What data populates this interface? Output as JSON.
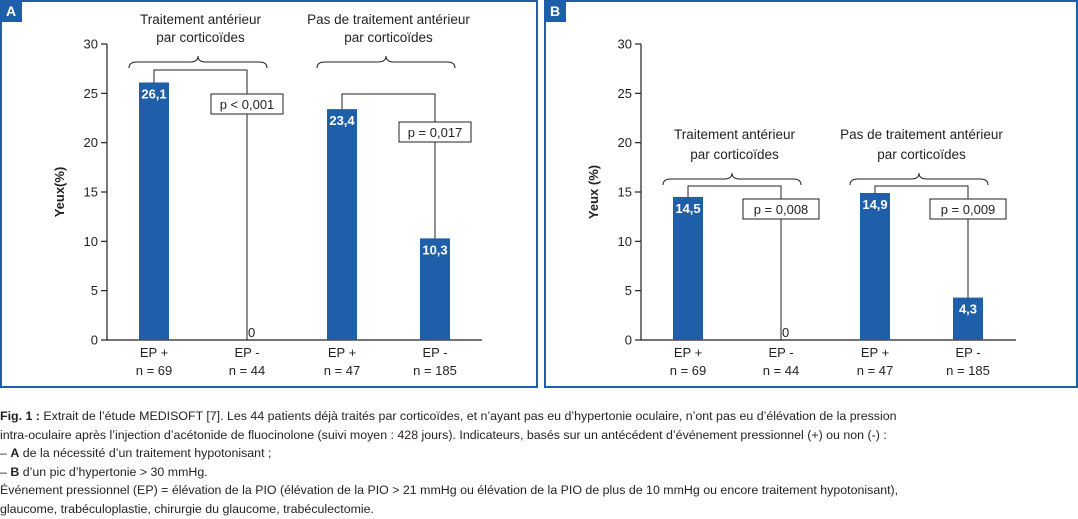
{
  "colors": {
    "bar": "#1f5ea8",
    "frame": "#1f5ea8",
    "text": "#231f20"
  },
  "chart_data": [
    {
      "type": "bar",
      "panel": "A",
      "ylabel": "Yeux(%)",
      "ylim": [
        0,
        30
      ],
      "yticks": [
        0,
        5,
        10,
        15,
        20,
        25,
        30
      ],
      "categories": [
        "EP +",
        "EP -",
        "EP +",
        "EP -"
      ],
      "n_labels": [
        "n = 69",
        "n = 44",
        "n = 47",
        "n = 185"
      ],
      "values": [
        26.1,
        0,
        23.4,
        10.3
      ],
      "value_labels": [
        "26,1",
        "0",
        "23,4",
        "10,3"
      ],
      "groups": [
        {
          "label_line1": "Traitement antérieur",
          "label_line2": "par corticoïdes",
          "p_label": "p < 0,001"
        },
        {
          "label_line1": "Pas de traitement antérieur",
          "label_line2": "par corticoïdes",
          "p_label": "p = 0,017"
        }
      ]
    },
    {
      "type": "bar",
      "panel": "B",
      "ylabel": "Yeux (%)",
      "ylim": [
        0,
        30
      ],
      "yticks": [
        0,
        5,
        10,
        15,
        20,
        25,
        30
      ],
      "categories": [
        "EP +",
        "EP -",
        "EP +",
        "EP -"
      ],
      "n_labels": [
        "n = 69",
        "n = 44",
        "n = 47",
        "n = 185"
      ],
      "values": [
        14.5,
        0,
        14.9,
        4.3
      ],
      "value_labels": [
        "14,5",
        "0",
        "14,9",
        "4,3"
      ],
      "groups": [
        {
          "label_line1": "Traitement antérieur",
          "label_line2": "par corticoïdes",
          "p_label": "p = 0,008"
        },
        {
          "label_line1": "Pas de traitement antérieur",
          "label_line2": "par corticoïdes",
          "p_label": "p = 0,009"
        }
      ]
    }
  ],
  "caption": {
    "fig_label": "Fig. 1 :",
    "line1": " Extrait de l’étude MEDISOFT [7]. Les 44 patients déjà traités par corticoïdes, et n’ayant pas eu d’hypertonie oculaire, n’ont pas eu d’élévation de la pression",
    "line2": "intra-oculaire après l’injection d’acétonide de fluocinolone (suivi moyen : 428 jours). Indicateurs, basés sur un antécédent d’événement pressionnel (+) ou non (-) :",
    "line3_prefix": "– ",
    "line3_bold": "A",
    "line3_rest": " de la nécessité d’un traitement hypotonisant ;",
    "line4_prefix": "– ",
    "line4_bold": "B",
    "line4_rest": " d’un pic d’hypertonie > 30 mmHg.",
    "line5": "Événement pressionnel (EP) = élévation de la PIO (élévation de la PIO > 21 mmHg ou élévation de la PIO de plus de 10 mmHg ou encore traitement hypotonisant),",
    "line6": "glaucome, trabéculoplastie, chirurgie du glaucome, trabéculectomie."
  }
}
